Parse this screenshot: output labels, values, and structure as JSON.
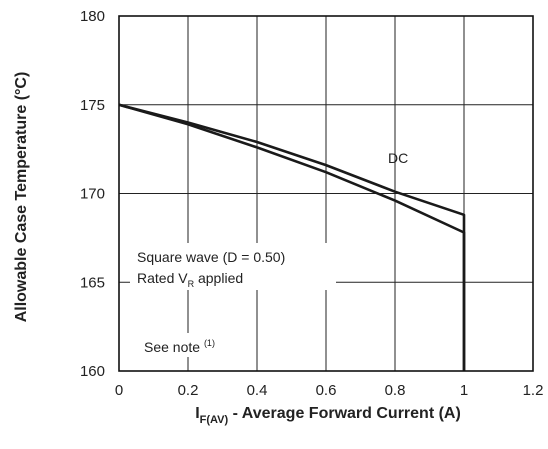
{
  "chart_data": {
    "type": "line",
    "xlabel_main": "I",
    "xlabel_sub": "F(AV)",
    "xlabel_rest": " - Average Forward Current (A)",
    "ylabel": "Allowable Case Temperature (°C)",
    "xlim": [
      0,
      1.2
    ],
    "ylim": [
      160,
      180
    ],
    "x_ticks": [
      "0",
      "0.2",
      "0.4",
      "0.6",
      "0.8",
      "1",
      "1.2"
    ],
    "y_ticks": [
      "160",
      "165",
      "170",
      "175",
      "180"
    ],
    "grid": true,
    "series": [
      {
        "name": "DC",
        "x": [
          0,
          0.2,
          0.4,
          0.6,
          0.8,
          1.0,
          1.0
        ],
        "y": [
          175,
          174.0,
          172.9,
          171.6,
          170.1,
          168.8,
          160
        ]
      },
      {
        "name": "Square wave (D = 0.50)",
        "x": [
          0,
          0.2,
          0.4,
          0.6,
          0.8,
          1.0,
          1.0
        ],
        "y": [
          175,
          173.9,
          172.6,
          171.2,
          169.6,
          167.8,
          160
        ]
      }
    ],
    "annotations": {
      "dc": "DC",
      "square_wave": "Square wave (D = 0.50)",
      "rated_pre": "Rated V",
      "rated_sub": "R",
      "rated_post": " applied",
      "note": "See note ",
      "note_sup": "(1)"
    }
  }
}
